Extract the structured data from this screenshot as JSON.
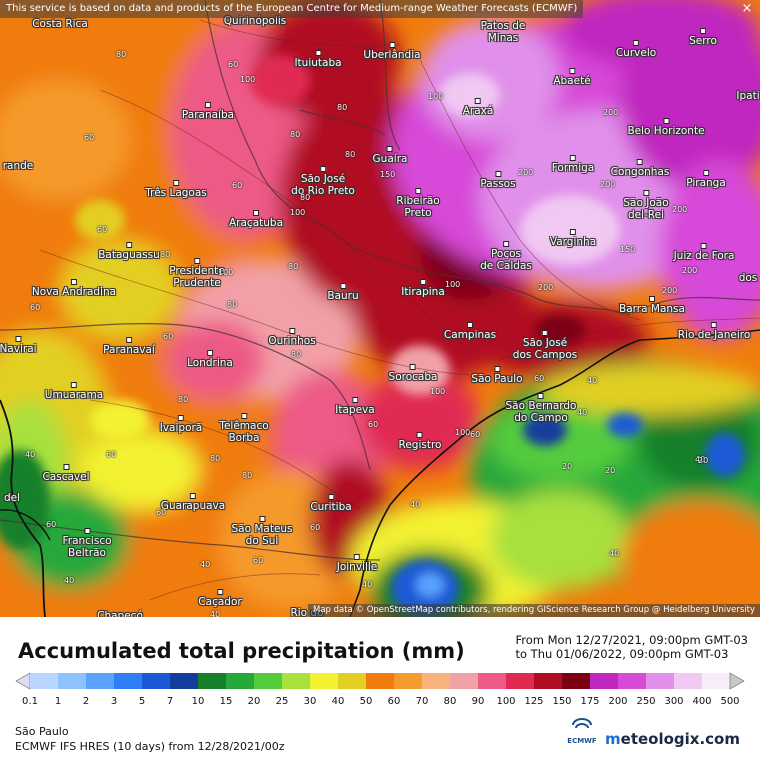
{
  "attribution_top": "This service is based on data and products of the European Centre for Medium-range Weather Forecasts (ECMWF)",
  "attribution_bottom": "Map data © OpenStreetMap contributors, rendering GIScience Research Group @ Heidelberg University",
  "close_symbol": "×",
  "legend": {
    "title": "Accumulated total precipitation (mm)",
    "period_from": "From Mon 12/27/2021, 09:00pm GMT-03",
    "period_to": "to Thu 01/06/2022, 09:00pm GMT-03",
    "levels": [
      "0.1",
      "1",
      "2",
      "3",
      "5",
      "7",
      "10",
      "15",
      "20",
      "25",
      "30",
      "40",
      "50",
      "60",
      "70",
      "80",
      "90",
      "100",
      "125",
      "150",
      "175",
      "200",
      "250",
      "300",
      "400",
      "500"
    ],
    "colors": [
      "#dcdcf4",
      "#b8d6ff",
      "#8cc2ff",
      "#5aa2ff",
      "#2e7ef5",
      "#1a5ad6",
      "#123e9e",
      "#16802a",
      "#26a83a",
      "#54cc3c",
      "#a8e03c",
      "#f2f230",
      "#e3cf22",
      "#f07c0c",
      "#f59a2c",
      "#f8b27a",
      "#f2a0a8",
      "#ed5a86",
      "#e02a52",
      "#b00c22",
      "#7a0012",
      "#c028c0",
      "#d74ad8",
      "#e090ea",
      "#f0c8f2",
      "#f8ecfa",
      "#c8c8c8"
    ]
  },
  "region": "São Paulo",
  "model": "ECMWF IFS HRES (10 days) from 12/28/2021/00z",
  "ecmwf_logo_text": "ECMWF",
  "brand": {
    "prefix": "m",
    "name": "eteologix.com"
  },
  "cities": [
    {
      "name": "Costa Rica",
      "dx": false,
      "dot": false
    },
    {
      "name": "Quirinópolis",
      "dot": false
    },
    {
      "name": "Patos de\nMinas",
      "dot": false
    },
    {
      "name": "Serro",
      "dot": true
    },
    {
      "name": "Ituiutaba",
      "dot": true
    },
    {
      "name": "Uberlândia",
      "dot": true
    },
    {
      "name": "Abaeté",
      "dot": true
    },
    {
      "name": "Curvelo",
      "dot": true
    },
    {
      "name": "Ipati",
      "dot": false
    },
    {
      "name": "Paranaíba",
      "dot": true
    },
    {
      "name": "Araxá",
      "dot": true
    },
    {
      "name": "Belo Horizonte",
      "dot": true
    },
    {
      "name": "Guaíra",
      "dot": true
    },
    {
      "name": "Formiga",
      "dot": true
    },
    {
      "name": "Congonhas",
      "dot": true
    },
    {
      "name": "Piranga",
      "dot": true
    },
    {
      "name": "São José\ndo Rio Preto",
      "dot": true
    },
    {
      "name": "Ribeirão\nPreto",
      "dot": true
    },
    {
      "name": "Passos",
      "dot": true
    },
    {
      "name": "São João\ndel-Rei",
      "dot": true
    },
    {
      "name": "Três Lagoas",
      "dot": true
    },
    {
      "name": "Araçatuba",
      "dot": true
    },
    {
      "name": "Varginha",
      "dot": true
    },
    {
      "name": "Poços\nde Caldas",
      "dot": true
    },
    {
      "name": "Juiz de Fora",
      "dot": true
    },
    {
      "name": "Bataguassu",
      "dot": true
    },
    {
      "name": "Presidente\nPrudente",
      "dot": true
    },
    {
      "name": "Nova Andradina",
      "dot": true
    },
    {
      "name": "Bauru",
      "dot": true
    },
    {
      "name": "Itirapina",
      "dot": true
    },
    {
      "name": "Barra Mansa",
      "dot": true
    },
    {
      "name": "Campinas",
      "dot": true
    },
    {
      "name": "São José\ndos Campos",
      "dot": true
    },
    {
      "name": "Rio de Janeiro",
      "dot": true
    },
    {
      "name": "Navirai",
      "dot": true
    },
    {
      "name": "Paranavaí",
      "dot": true
    },
    {
      "name": "Ourinhos",
      "dot": true
    },
    {
      "name": "Londrina",
      "dot": true
    },
    {
      "name": "Sorocaba",
      "dot": true
    },
    {
      "name": "São Paulo",
      "dot": true
    },
    {
      "name": "Umuarama",
      "dot": true
    },
    {
      "name": "São Bernardo\ndo Campo",
      "dot": true
    },
    {
      "name": "Itapeva",
      "dot": true
    },
    {
      "name": "Ivaiporã",
      "dot": true
    },
    {
      "name": "Telêmaco\nBorba",
      "dot": true
    },
    {
      "name": "Registro",
      "dot": true
    },
    {
      "name": "Cascavel",
      "dot": true
    },
    {
      "name": "Guarapuava",
      "dot": true
    },
    {
      "name": "Curitiba",
      "dot": true
    },
    {
      "name": "Francisco\nBeltrão",
      "dot": true
    },
    {
      "name": "São Mateus\ndo Sul",
      "dot": true
    },
    {
      "name": "Joinville",
      "dot": true
    },
    {
      "name": "Caçador",
      "dot": true
    },
    {
      "name": "Chapecó",
      "dot": false
    },
    {
      "name": "Rio do",
      "dot": false
    },
    {
      "name": "rande",
      "dot": false
    },
    {
      "name": "dos",
      "dot": false
    },
    {
      "name": "del",
      "dot": false
    }
  ],
  "contour_labels": [
    "80",
    "60",
    "100",
    "80",
    "80",
    "80",
    "60",
    "60",
    "100",
    "80",
    "100",
    "200",
    "200",
    "200",
    "200",
    "150",
    "200",
    "200",
    "150",
    "100",
    "200",
    "60",
    "80",
    "100",
    "60",
    "80",
    "60",
    "80",
    "100",
    "100",
    "80",
    "80",
    "80",
    "60",
    "40",
    "60",
    "40",
    "60",
    "80",
    "40",
    "40",
    "60",
    "40",
    "40",
    "60",
    "60",
    "40",
    "60",
    "20",
    "20",
    "20",
    "40",
    "40",
    "60",
    "40"
  ]
}
